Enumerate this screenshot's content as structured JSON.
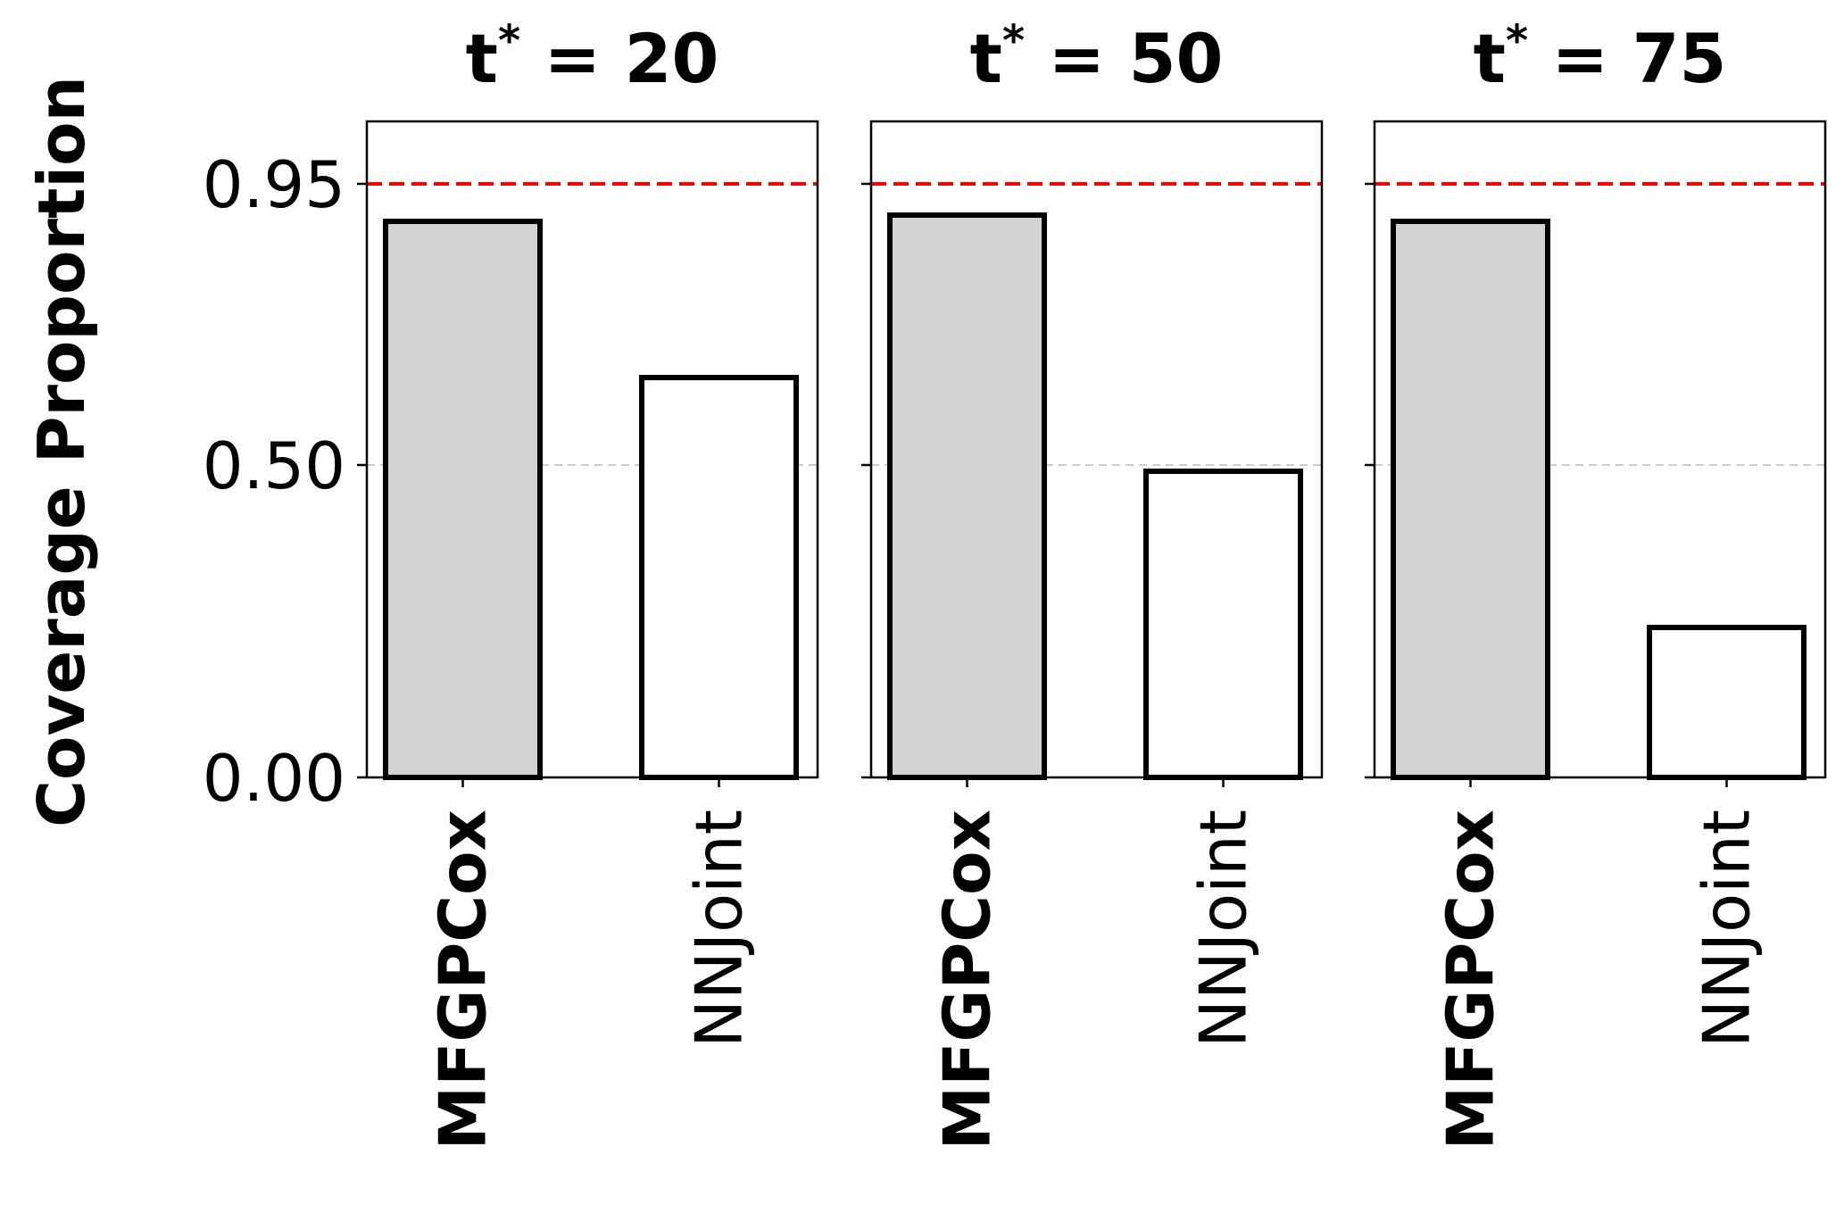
{
  "chart_data": {
    "type": "bar",
    "ylabel": "Coverage Proportion",
    "ylim": [
      0,
      1.05
    ],
    "yticks": [
      "0.00",
      "0.50",
      "0.95"
    ],
    "ytick_values": [
      0.0,
      0.5,
      0.95
    ],
    "reference_line": {
      "value": 0.95,
      "color": "#ff0000",
      "style": "dashed"
    },
    "grid_line": {
      "value": 0.5,
      "color": "#cccccc",
      "style": "dashed"
    },
    "categories": [
      "MFGPCox",
      "NNJoint"
    ],
    "bar_colors": [
      "#d3d3d3",
      "#ffffff"
    ],
    "panels": [
      {
        "title": "t* = 20",
        "title_base": "t",
        "title_sup": "*",
        "title_rest": " = 20",
        "values": [
          0.89,
          0.64
        ]
      },
      {
        "title": "t* = 50",
        "title_base": "t",
        "title_sup": "*",
        "title_rest": " = 50",
        "values": [
          0.9,
          0.49
        ]
      },
      {
        "title": "t* = 75",
        "title_base": "t",
        "title_sup": "*",
        "title_rest": " = 75",
        "values": [
          0.89,
          0.24
        ]
      }
    ]
  }
}
